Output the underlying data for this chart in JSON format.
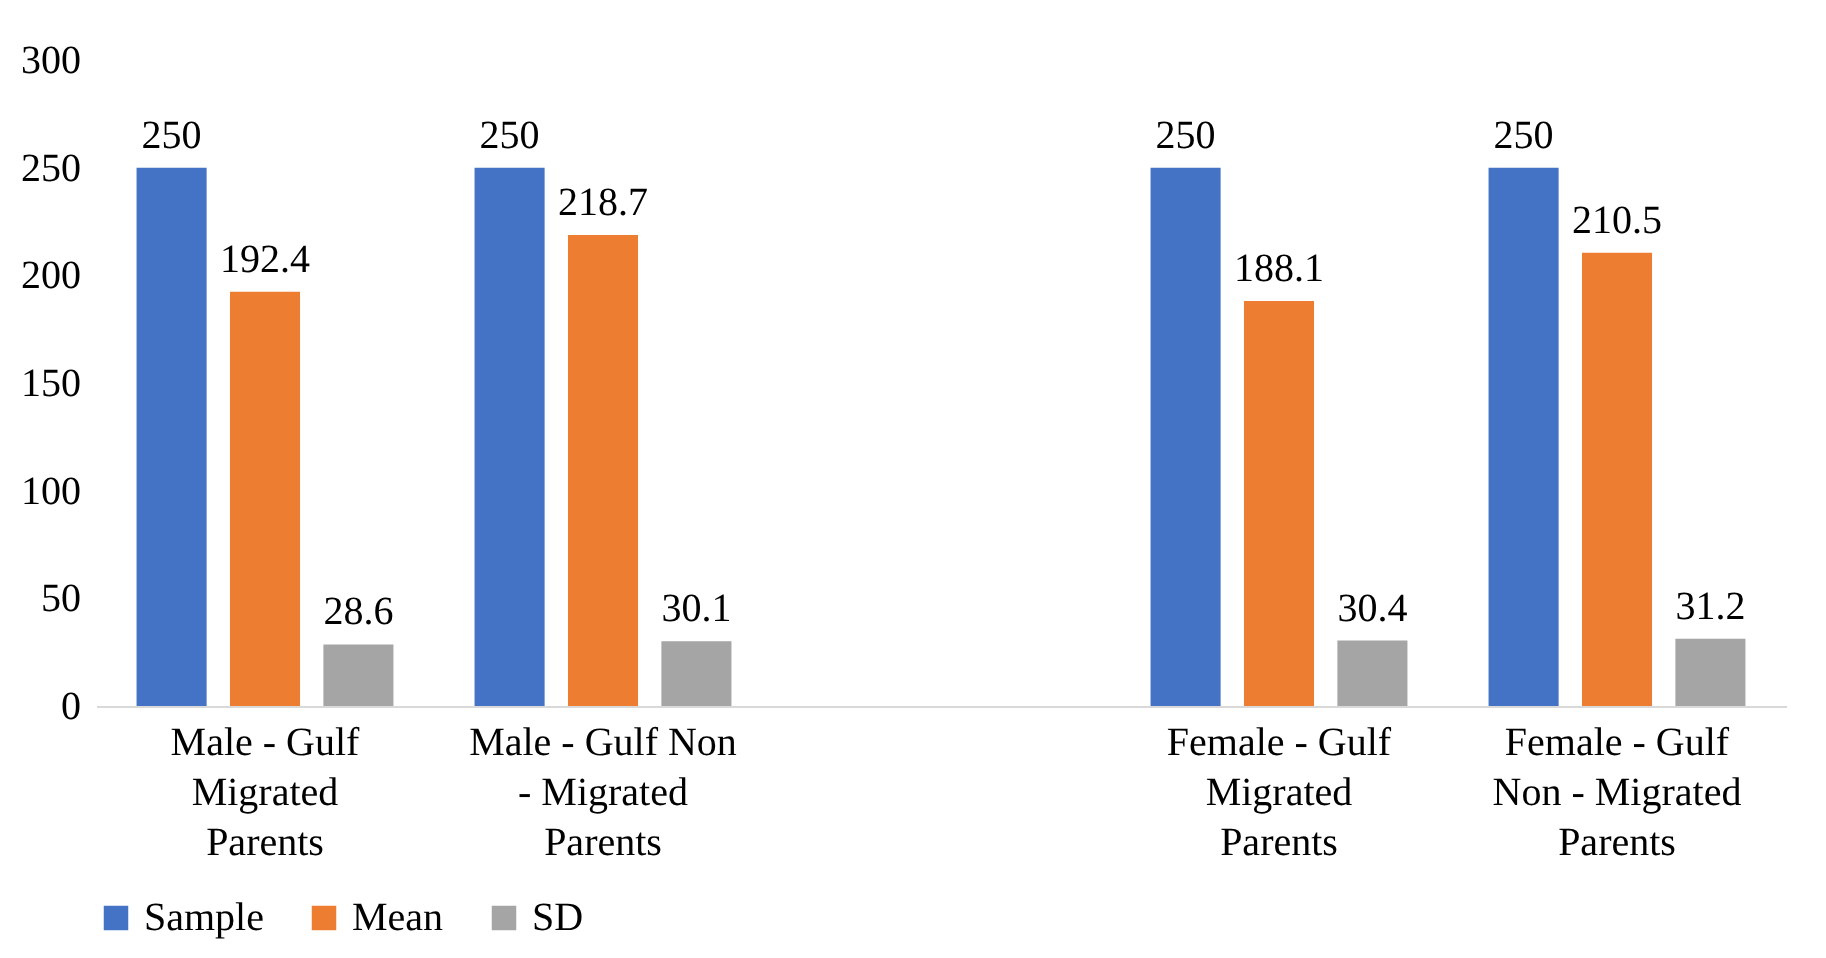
{
  "chart_data": {
    "type": "bar",
    "categories": [
      "Male - Gulf Migrated Parents",
      "Male - Gulf Non - Migrated Parents",
      null,
      "Female - Gulf Migrated Parents",
      "Female - Gulf Non - Migrated Parents"
    ],
    "series": [
      {
        "name": "Sample",
        "color": "#4472c4",
        "values": [
          250,
          250,
          null,
          250,
          250
        ]
      },
      {
        "name": "Mean",
        "color": "#ed7d31",
        "values": [
          192.4,
          218.7,
          null,
          188.1,
          210.5
        ]
      },
      {
        "name": "SD",
        "color": "#a5a5a5",
        "values": [
          28.6,
          30.1,
          null,
          30.4,
          31.2
        ]
      }
    ],
    "ylim": [
      0,
      300
    ],
    "yticks": [
      0,
      50,
      100,
      150,
      200,
      250,
      300
    ],
    "grid": false,
    "legend": "bottom",
    "data_labels": true
  }
}
